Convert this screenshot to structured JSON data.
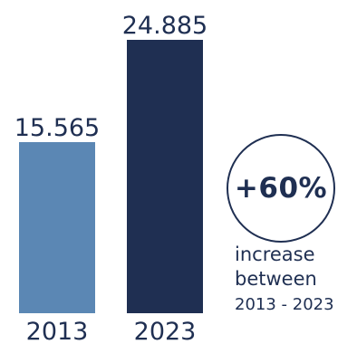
{
  "chart_data": {
    "type": "bar",
    "categories": [
      "2013",
      "2023"
    ],
    "values": [
      15565,
      24885
    ],
    "value_labels": [
      "15.565",
      "24.885"
    ],
    "ylim": [
      0,
      26000
    ],
    "grid": false,
    "colors": [
      "#5b87b4",
      "#1f2f52"
    ]
  },
  "callout": {
    "badge": "+60%",
    "line1": "increase",
    "line2": "between",
    "line3": "2013 - 2023"
  },
  "colors": {
    "text": "#1f2f52",
    "background": "#ffffff"
  }
}
